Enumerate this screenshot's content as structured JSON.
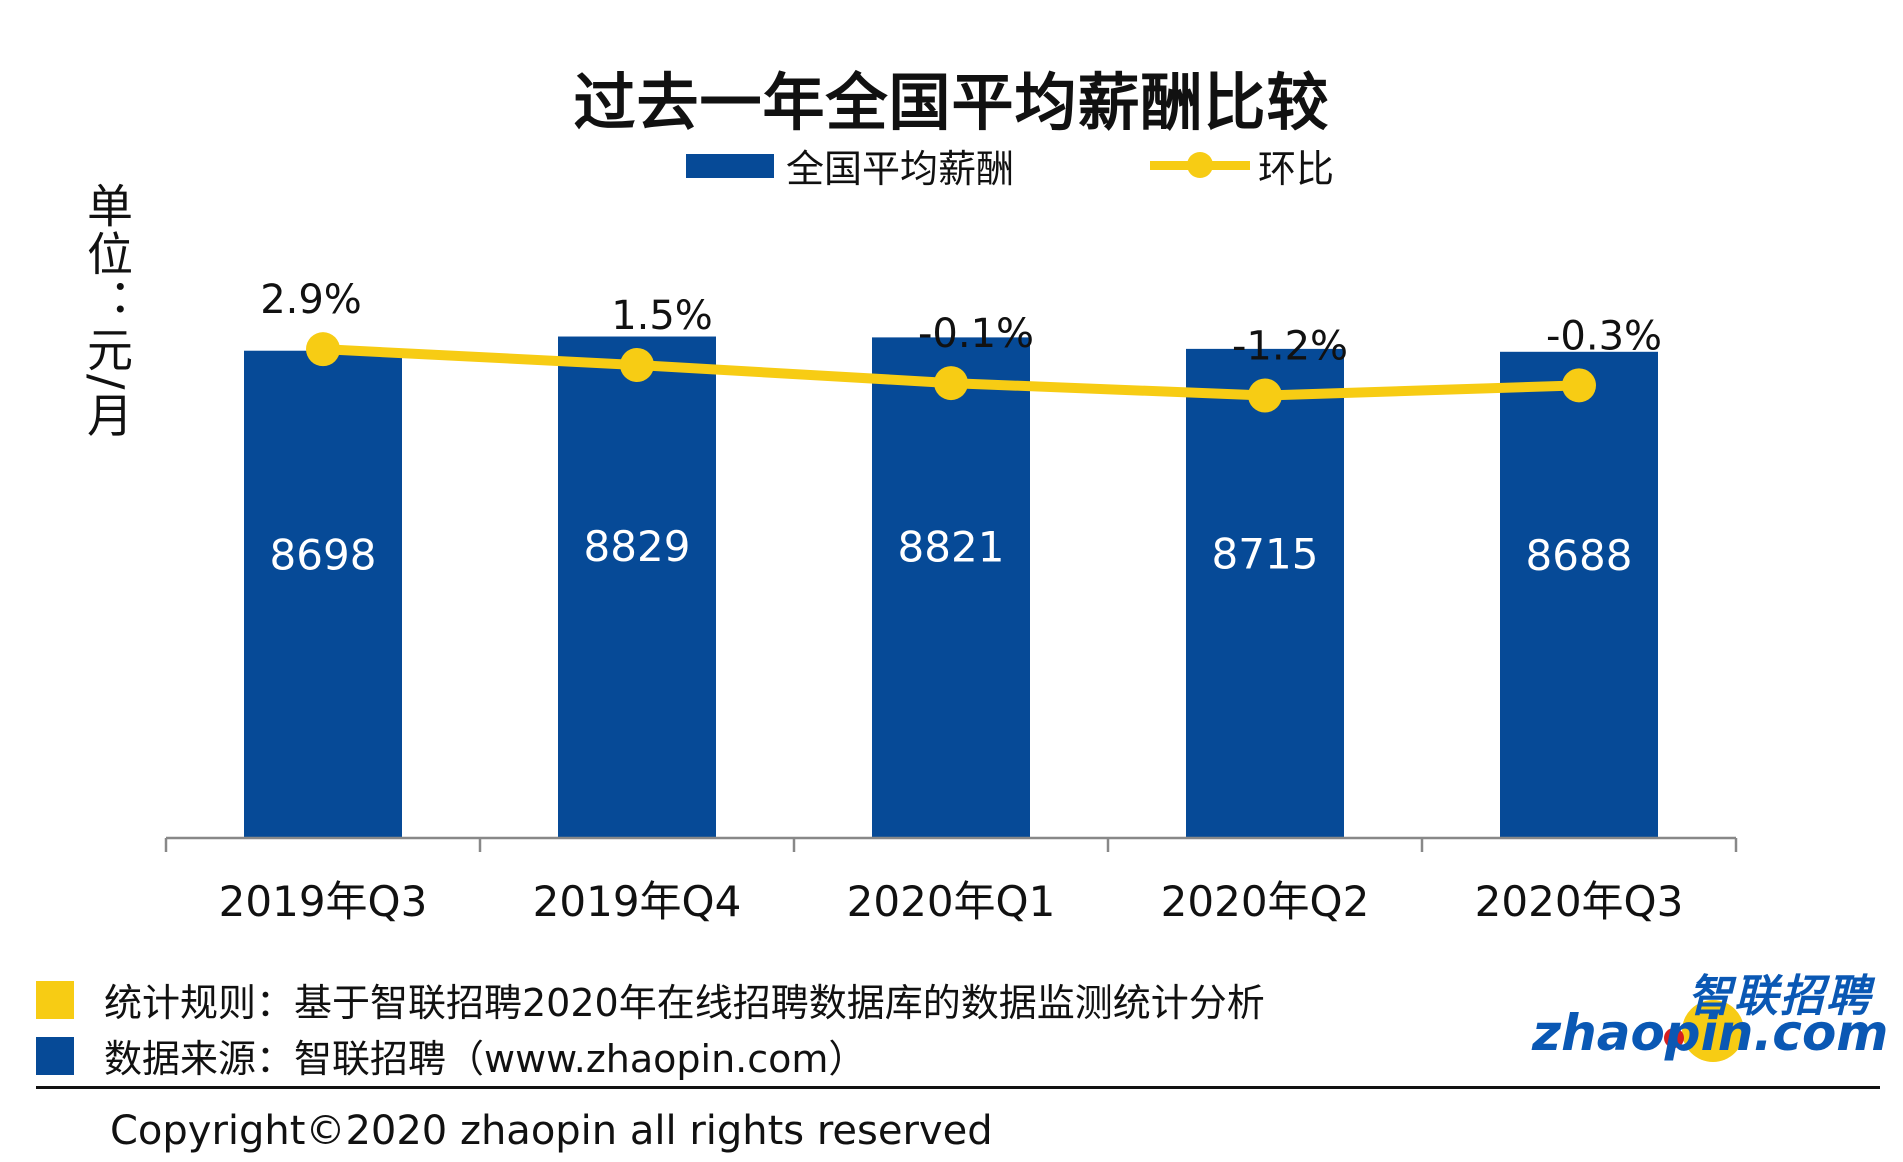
{
  "chart_data": {
    "type": "bar",
    "title": "过去一年全国平均薪酬比较",
    "unit_label": "单位：元/月",
    "categories": [
      "2019年Q3",
      "2019年Q4",
      "2020年Q1",
      "2020年Q2",
      "2020年Q3"
    ],
    "series": [
      {
        "name": "全国平均薪酬",
        "kind": "bar",
        "color": "#064a97",
        "values": [
          8698,
          8829,
          8821,
          8715,
          8688
        ],
        "labels": [
          "8698",
          "8829",
          "8821",
          "8715",
          "8688"
        ]
      },
      {
        "name": "环比",
        "kind": "line",
        "color": "#f7cc14",
        "values": [
          2.9,
          1.5,
          -0.1,
          -1.2,
          -0.3
        ],
        "labels": [
          "2.9%",
          "1.5%",
          "-0.1%",
          "-1.2%",
          "-0.3%"
        ]
      }
    ],
    "grid": false,
    "legend_placement": "top-center"
  },
  "notes": {
    "rule_label": "统计规则：基于智联招聘2020年在线招聘数据库的数据监测统计分析",
    "rule_color": "#f7cc14",
    "source_label": "数据来源：智联招聘（www.zhaopin.com）",
    "source_color": "#064a97"
  },
  "footer": {
    "copyright": "Copyright©2020 zhaopin all rights reserved"
  },
  "logo": {
    "cn": "智联招聘",
    "en": "zhaopin.com"
  }
}
